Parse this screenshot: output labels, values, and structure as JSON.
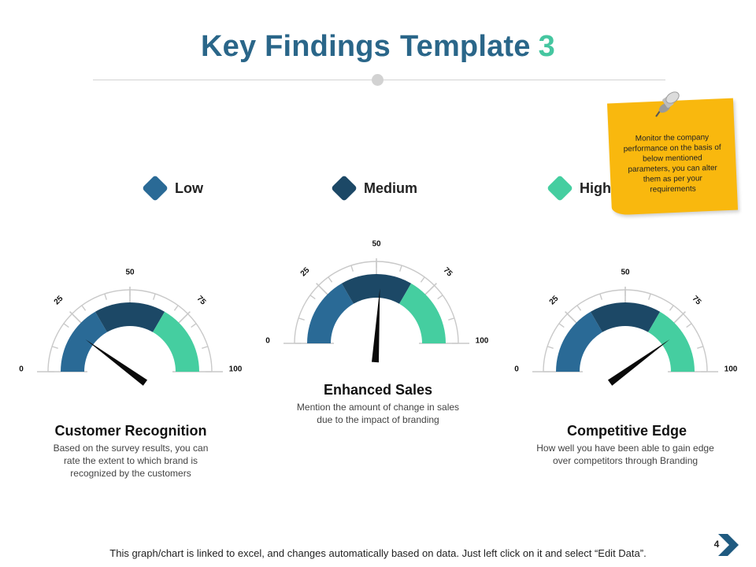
{
  "title": {
    "part1": "Key Findings",
    "part2": "Template",
    "number": "3"
  },
  "colors": {
    "low": "#2a6a96",
    "medium": "#1c4866",
    "high": "#45cea0",
    "title": "#2a6689",
    "accent": "#45c6a0",
    "note": "#f9b80e"
  },
  "legend": [
    {
      "label": "Low",
      "color": "#2a6a96"
    },
    {
      "label": "Medium",
      "color": "#1c4866"
    },
    {
      "label": "High",
      "color": "#45cea0"
    }
  ],
  "note": {
    "text": "Monitor the company performance on the basis of below mentioned parameters, you can alter them as per your requirements",
    "icon": "pushpin-icon"
  },
  "chart_data": [
    {
      "type": "gauge",
      "title": "Customer Recognition",
      "description": "Based on the survey results, you can rate the extent to which brand is recognized by the customers",
      "range": [
        0,
        100
      ],
      "tick_labels": [
        "0",
        "25",
        "50",
        "75",
        "100"
      ],
      "bands": [
        {
          "name": "Low",
          "from": 0,
          "to": 33.3
        },
        {
          "name": "Medium",
          "from": 33.3,
          "to": 66.7
        },
        {
          "name": "High",
          "from": 66.7,
          "to": 100
        }
      ],
      "value": 20
    },
    {
      "type": "gauge",
      "title": "Enhanced Sales",
      "description": "Mention the amount of change in sales due to the impact of branding",
      "range": [
        0,
        100
      ],
      "tick_labels": [
        "0",
        "25",
        "50",
        "75",
        "100"
      ],
      "bands": [
        {
          "name": "Low",
          "from": 0,
          "to": 33.3
        },
        {
          "name": "Medium",
          "from": 33.3,
          "to": 66.7
        },
        {
          "name": "High",
          "from": 66.7,
          "to": 100
        }
      ],
      "value": 52
    },
    {
      "type": "gauge",
      "title": "Competitive Edge",
      "description": "How well you have been able to gain edge over competitors through Branding",
      "range": [
        0,
        100
      ],
      "tick_labels": [
        "0",
        "25",
        "50",
        "75",
        "100"
      ],
      "bands": [
        {
          "name": "Low",
          "from": 0,
          "to": 33.3
        },
        {
          "name": "Medium",
          "from": 33.3,
          "to": 66.7
        },
        {
          "name": "High",
          "from": 66.7,
          "to": 100
        }
      ],
      "value": 80
    }
  ],
  "footer": {
    "text": "This graph/chart is linked to excel, and changes automatically based on data. Just left click on it and select “Edit Data”.",
    "page_number": "4",
    "icon": "chevron-right-icon"
  }
}
